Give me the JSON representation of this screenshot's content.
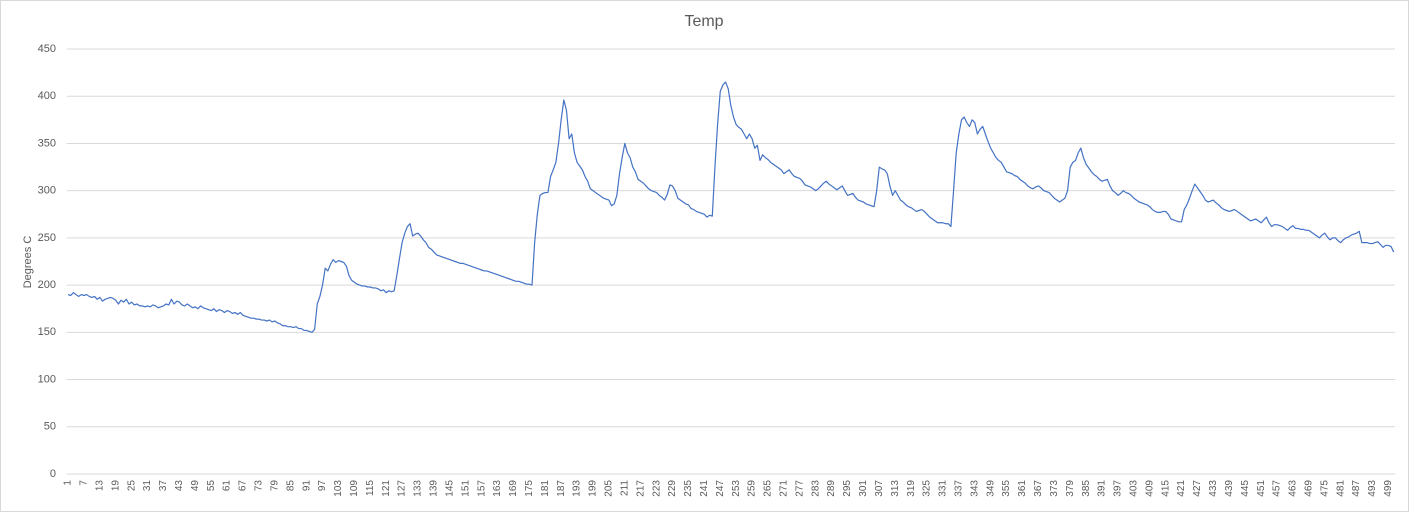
{
  "chart_data": {
    "type": "line",
    "title": "Temp",
    "y_label": "Degrees C",
    "color": "#4472c4",
    "grid": true,
    "ylim": [
      0,
      450
    ],
    "yticks": [
      0,
      50,
      100,
      150,
      200,
      250,
      300,
      350,
      400,
      450
    ],
    "categories": [
      1,
      null,
      null,
      null,
      null,
      null,
      7,
      null,
      null,
      null,
      null,
      null,
      13,
      null,
      null,
      null,
      null,
      null,
      19,
      null,
      null,
      null,
      null,
      null,
      25,
      null,
      null,
      null,
      null,
      null,
      31,
      null,
      null,
      null,
      null,
      null,
      37,
      null,
      null,
      null,
      null,
      null,
      43,
      null,
      null,
      null,
      null,
      null,
      49,
      null,
      null,
      null,
      null,
      null,
      55,
      null,
      null,
      null,
      null,
      null,
      61,
      null,
      null,
      null,
      null,
      null,
      67,
      null,
      null,
      null,
      null,
      null,
      73,
      null,
      null,
      null,
      null,
      null,
      79,
      null,
      null,
      null,
      null,
      null,
      85,
      null,
      null,
      null,
      null,
      null,
      91,
      null,
      null,
      null,
      null,
      null,
      97,
      null,
      null,
      null,
      null,
      null,
      103,
      null,
      null,
      null,
      null,
      null,
      109,
      null,
      null,
      null,
      null,
      null,
      115,
      null,
      null,
      null,
      null,
      null,
      121,
      null,
      null,
      null,
      null,
      null,
      127,
      null,
      null,
      null,
      null,
      null,
      133,
      null,
      null,
      null,
      null,
      null,
      139,
      null,
      null,
      null,
      null,
      null,
      145,
      null,
      null,
      null,
      null,
      null,
      151,
      null,
      null,
      null,
      null,
      null,
      157,
      null,
      null,
      null,
      null,
      null,
      163,
      null,
      null,
      null,
      null,
      null,
      169,
      null,
      null,
      null,
      null,
      null,
      175,
      null,
      null,
      null,
      null,
      null,
      181,
      null,
      null,
      null,
      null,
      null,
      187,
      null,
      null,
      null,
      null,
      null,
      193,
      null,
      null,
      null,
      null,
      null,
      199,
      null,
      null,
      null,
      null,
      null,
      205,
      null,
      null,
      null,
      null,
      null,
      211,
      null,
      null,
      null,
      null,
      null,
      217,
      null,
      null,
      null,
      null,
      null,
      223,
      null,
      null,
      null,
      null,
      null,
      229,
      null,
      null,
      null,
      null,
      null,
      235,
      null,
      null,
      null,
      null,
      null,
      241,
      null,
      null,
      null,
      null,
      null,
      247,
      null,
      null,
      null,
      null,
      null,
      253,
      null,
      null,
      null,
      null,
      null,
      259,
      null,
      null,
      null,
      null,
      null,
      265,
      null,
      null,
      null,
      null,
      null,
      271,
      null,
      null,
      null,
      null,
      null,
      277,
      null,
      null,
      null,
      null,
      null,
      283,
      null,
      null,
      null,
      null,
      null,
      289,
      null,
      null,
      null,
      null,
      null,
      295,
      null,
      null,
      null,
      null,
      null,
      301,
      null,
      null,
      null,
      null,
      null,
      307,
      null,
      null,
      null,
      null,
      null,
      313,
      null,
      null,
      null,
      null,
      null,
      319,
      null,
      null,
      null,
      null,
      null,
      325,
      null,
      null,
      null,
      null,
      null,
      331,
      null,
      null,
      null,
      null,
      null,
      337,
      null,
      null,
      null,
      null,
      null,
      343,
      null,
      null,
      null,
      null,
      null,
      349,
      null,
      null,
      null,
      null,
      null,
      355,
      null,
      null,
      null,
      null,
      null,
      361,
      null,
      null,
      null,
      null,
      null,
      367,
      null,
      null,
      null,
      null,
      null,
      373,
      null,
      null,
      null,
      null,
      null,
      379,
      null,
      null,
      null,
      null,
      null,
      385,
      null,
      null,
      null,
      null,
      null,
      391,
      null,
      null,
      null,
      null,
      null,
      397,
      null,
      null,
      null,
      null,
      null,
      403,
      null,
      null,
      null,
      null,
      null,
      409,
      null,
      null,
      null,
      null,
      null,
      415,
      null,
      null,
      null,
      null,
      null,
      421,
      null,
      null,
      null,
      null,
      null,
      427,
      null,
      null,
      null,
      null,
      null,
      433,
      null,
      null,
      null,
      null,
      null,
      439,
      null,
      null,
      null,
      null,
      null,
      445,
      null,
      null,
      null,
      null,
      null,
      451,
      null,
      null,
      null,
      null,
      null,
      457,
      null,
      null,
      null,
      null,
      null,
      463,
      null,
      null,
      null,
      null,
      null,
      469,
      null,
      null,
      null,
      null,
      null,
      475,
      null,
      null,
      null,
      null,
      null,
      481,
      null,
      null,
      null,
      null,
      null,
      487,
      null,
      null,
      null,
      null,
      null,
      493,
      null,
      null,
      null,
      null,
      null,
      499,
      null,
      null
    ],
    "values": [
      190,
      189,
      192,
      190,
      188,
      190,
      189,
      190,
      188,
      187,
      188,
      185,
      187,
      183,
      185,
      186,
      187,
      186,
      184,
      180,
      184,
      182,
      185,
      180,
      182,
      179,
      180,
      178,
      178,
      177,
      178,
      177,
      179,
      178,
      176,
      177,
      178,
      180,
      179,
      185,
      180,
      183,
      182,
      179,
      178,
      180,
      178,
      176,
      177,
      175,
      178,
      176,
      175,
      174,
      173,
      175,
      172,
      174,
      173,
      171,
      173,
      172,
      170,
      171,
      169,
      171,
      168,
      167,
      166,
      165,
      165,
      164,
      164,
      163,
      163,
      162,
      163,
      161,
      162,
      160,
      159,
      157,
      157,
      156,
      156,
      155,
      156,
      154,
      154,
      152,
      152,
      151,
      150,
      153,
      180,
      188,
      200,
      218,
      215,
      222,
      227,
      224,
      226,
      225,
      224,
      220,
      210,
      205,
      203,
      201,
      200,
      199,
      199,
      198,
      198,
      197,
      197,
      196,
      194,
      195,
      192,
      194,
      193,
      194,
      210,
      228,
      245,
      255,
      262,
      265,
      252,
      254,
      255,
      252,
      248,
      245,
      240,
      238,
      235,
      232,
      231,
      230,
      229,
      228,
      227,
      226,
      225,
      224,
      223,
      223,
      222,
      221,
      220,
      219,
      218,
      217,
      216,
      215,
      215,
      214,
      213,
      212,
      211,
      210,
      209,
      208,
      207,
      206,
      205,
      204,
      204,
      203,
      202,
      201,
      201,
      200,
      245,
      275,
      295,
      297,
      298,
      298,
      315,
      322,
      330,
      350,
      375,
      396,
      385,
      355,
      360,
      340,
      330,
      326,
      322,
      315,
      310,
      302,
      300,
      298,
      296,
      294,
      292,
      291,
      290,
      284,
      286,
      295,
      318,
      335,
      350,
      340,
      335,
      325,
      320,
      312,
      310,
      308,
      305,
      302,
      300,
      299,
      298,
      295,
      293,
      290,
      296,
      306,
      305,
      300,
      292,
      290,
      288,
      286,
      285,
      281,
      280,
      278,
      277,
      276,
      275,
      272,
      274,
      273,
      325,
      370,
      405,
      412,
      415,
      408,
      390,
      378,
      370,
      367,
      365,
      360,
      355,
      360,
      355,
      345,
      348,
      332,
      338,
      335,
      333,
      330,
      328,
      326,
      324,
      322,
      318,
      320,
      322,
      318,
      315,
      314,
      313,
      310,
      306,
      305,
      304,
      302,
      300,
      302,
      305,
      308,
      310,
      307,
      305,
      303,
      301,
      303,
      305,
      300,
      295,
      296,
      297,
      293,
      290,
      289,
      288,
      286,
      285,
      284,
      283,
      300,
      325,
      323,
      322,
      318,
      305,
      295,
      300,
      295,
      290,
      288,
      285,
      283,
      282,
      280,
      278,
      279,
      280,
      278,
      275,
      272,
      270,
      268,
      266,
      266,
      266,
      265,
      265,
      262,
      300,
      340,
      360,
      375,
      378,
      372,
      368,
      375,
      372,
      360,
      365,
      368,
      360,
      352,
      345,
      340,
      335,
      332,
      330,
      325,
      320,
      319,
      318,
      316,
      315,
      312,
      310,
      308,
      305,
      303,
      302,
      304,
      305,
      303,
      300,
      299,
      298,
      295,
      292,
      290,
      288,
      290,
      292,
      300,
      325,
      330,
      332,
      340,
      345,
      335,
      328,
      324,
      320,
      317,
      315,
      312,
      310,
      311,
      312,
      305,
      300,
      298,
      295,
      297,
      300,
      298,
      297,
      295,
      292,
      290,
      288,
      287,
      286,
      285,
      283,
      280,
      278,
      277,
      277,
      278,
      278,
      275,
      270,
      269,
      268,
      267,
      267,
      280,
      285,
      292,
      300,
      307,
      303,
      299,
      295,
      290,
      288,
      289,
      290,
      287,
      285,
      282,
      280,
      279,
      278,
      279,
      280,
      278,
      276,
      274,
      272,
      270,
      268,
      269,
      270,
      268,
      266,
      269,
      272,
      266,
      262,
      264,
      264,
      263,
      262,
      260,
      258,
      261,
      263,
      260,
      260,
      259,
      259,
      258,
      258,
      256,
      254,
      252,
      250,
      253,
      255,
      251,
      248,
      250,
      250,
      247,
      245,
      248,
      250,
      251,
      253,
      254,
      255,
      257,
      245,
      245,
      245,
      244,
      244,
      245,
      246,
      243,
      240,
      242,
      242,
      241,
      235
    ]
  }
}
